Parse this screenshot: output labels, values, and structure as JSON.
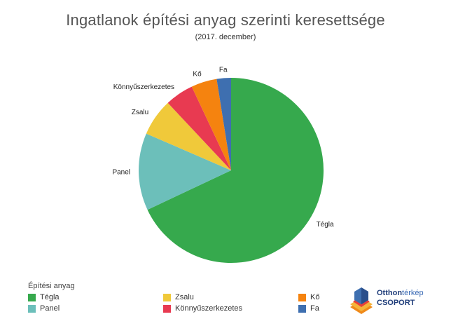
{
  "colors": {
    "Tégla": "#36a94d",
    "Panel": "#6cbfba",
    "Zsalu": "#f0c93a",
    "Könnyűszerkezetes": "#e83a51",
    "Kő": "#f5830f",
    "Fa": "#3e6fb0"
  },
  "chart_data": {
    "type": "pie",
    "title": "Ingatlanok építési anyag szerinti keresettsége",
    "subtitle": "(2017. december)",
    "legend_title": "Építési anyag",
    "legend_placement": "bottom-left",
    "slices": [
      {
        "label": "Tégla",
        "value": 68
      },
      {
        "label": "Panel",
        "value": 13.5
      },
      {
        "label": "Zsalu",
        "value": 6.5
      },
      {
        "label": "Könnyűszerkezetes",
        "value": 5
      },
      {
        "label": "Kő",
        "value": 4.5
      },
      {
        "label": "Fa",
        "value": 2.5
      }
    ]
  },
  "legend": [
    {
      "label": "Tégla"
    },
    {
      "label": "Panel"
    },
    {
      "label": "Zsalu"
    },
    {
      "label": "Könnyűszerkezetes"
    },
    {
      "label": "Kő"
    },
    {
      "label": "Fa"
    }
  ],
  "logo": {
    "line1_bold": "Otthon",
    "line1_light": "térkép",
    "line2": "CSOPORT"
  }
}
